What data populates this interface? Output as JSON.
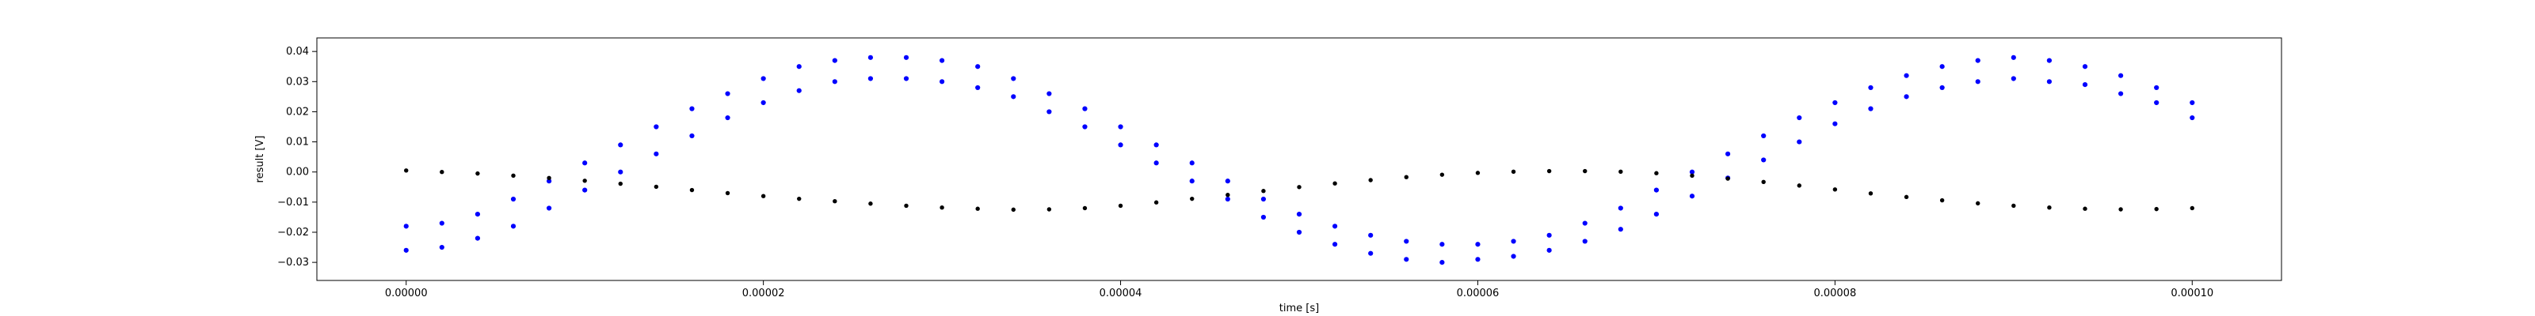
{
  "chart_data": {
    "type": "scatter",
    "title": "",
    "xlabel": "time [s]",
    "ylabel": "result [V]",
    "xlim": [
      -5e-06,
      0.000105
    ],
    "ylim": [
      -0.036,
      0.0445
    ],
    "grid": false,
    "legend": null,
    "x_ticks": [
      {
        "value": 0.0,
        "label": "0.00000"
      },
      {
        "value": 2e-05,
        "label": "0.00002"
      },
      {
        "value": 4e-05,
        "label": "0.00004"
      },
      {
        "value": 6e-05,
        "label": "0.00006"
      },
      {
        "value": 8e-05,
        "label": "0.00008"
      },
      {
        "value": 0.0001,
        "label": "0.00010"
      }
    ],
    "y_ticks": [
      {
        "value": -0.03,
        "label": "−0.03"
      },
      {
        "value": -0.02,
        "label": "−0.02"
      },
      {
        "value": -0.01,
        "label": "−0.01"
      },
      {
        "value": 0.0,
        "label": "0.00"
      },
      {
        "value": 0.01,
        "label": "0.01"
      },
      {
        "value": 0.02,
        "label": "0.02"
      },
      {
        "value": 0.03,
        "label": "0.03"
      },
      {
        "value": 0.04,
        "label": "0.04"
      }
    ],
    "series": [
      {
        "color": "#0000ff",
        "x": [
          0.0,
          2e-06,
          4e-06,
          6e-06,
          8e-06,
          1e-05,
          1.2e-05,
          1.4e-05,
          1.6e-05,
          1.8e-05,
          2e-05,
          2.2e-05,
          2.4e-05,
          2.6e-05,
          2.8e-05,
          3e-05,
          3.2e-05,
          3.4e-05,
          3.6e-05,
          3.8e-05,
          4e-05,
          4.2e-05,
          4.4e-05,
          4.6e-05,
          4.8e-05,
          5e-05,
          5.2e-05,
          5.4e-05,
          5.6e-05,
          5.8e-05,
          6e-05,
          6.2e-05,
          6.4e-05,
          6.6e-05,
          6.8e-05,
          7e-05,
          7.2e-05,
          7.4e-05,
          7.6e-05,
          7.8e-05,
          8e-05,
          8.2e-05,
          8.4e-05,
          8.6e-05,
          8.8e-05,
          9e-05,
          9.2e-05,
          9.4e-05,
          9.6e-05,
          9.8e-05,
          0.0001
        ],
        "y": [
          -0.018,
          -0.017,
          -0.014,
          -0.009,
          -0.003,
          0.003,
          0.009,
          0.015,
          0.021,
          0.026,
          0.031,
          0.035,
          0.037,
          0.038,
          0.038,
          0.037,
          0.035,
          0.031,
          0.026,
          0.021,
          0.015,
          0.009,
          0.003,
          -0.003,
          -0.009,
          -0.014,
          -0.018,
          -0.021,
          -0.023,
          -0.024,
          -0.024,
          -0.023,
          -0.021,
          -0.017,
          -0.012,
          -0.006,
          0.0,
          0.006,
          0.012,
          0.018,
          0.023,
          0.028,
          0.032,
          0.035,
          0.037,
          0.038,
          0.037,
          0.035,
          0.032,
          0.028,
          0.023
        ]
      },
      {
        "color": "#0000ff",
        "x": [
          0.0,
          2e-06,
          4e-06,
          6e-06,
          8e-06,
          1e-05,
          1.2e-05,
          1.4e-05,
          1.6e-05,
          1.8e-05,
          2e-05,
          2.2e-05,
          2.4e-05,
          2.6e-05,
          2.8e-05,
          3e-05,
          3.2e-05,
          3.4e-05,
          3.6e-05,
          3.8e-05,
          4e-05,
          4.2e-05,
          4.4e-05,
          4.6e-05,
          4.8e-05,
          5e-05,
          5.2e-05,
          5.4e-05,
          5.6e-05,
          5.8e-05,
          6e-05,
          6.2e-05,
          6.4e-05,
          6.6e-05,
          6.8e-05,
          7e-05,
          7.2e-05,
          7.4e-05,
          7.6e-05,
          7.8e-05,
          8e-05,
          8.2e-05,
          8.4e-05,
          8.6e-05,
          8.8e-05,
          9e-05,
          9.2e-05,
          9.4e-05,
          9.6e-05,
          9.8e-05,
          0.0001
        ],
        "y": [
          -0.026,
          -0.025,
          -0.022,
          -0.018,
          -0.012,
          -0.006,
          0.0,
          0.006,
          0.012,
          0.018,
          0.023,
          0.027,
          0.03,
          0.031,
          0.031,
          0.03,
          0.028,
          0.025,
          0.02,
          0.015,
          0.009,
          0.003,
          -0.003,
          -0.009,
          -0.015,
          -0.02,
          -0.024,
          -0.027,
          -0.029,
          -0.03,
          -0.029,
          -0.028,
          -0.026,
          -0.023,
          -0.019,
          -0.014,
          -0.008,
          -0.002,
          0.004,
          0.01,
          0.016,
          0.021,
          0.025,
          0.028,
          0.03,
          0.031,
          0.03,
          0.029,
          0.026,
          0.023,
          0.018
        ]
      },
      {
        "color": "#000000",
        "x": [
          0.0,
          2e-06,
          4e-06,
          6e-06,
          8e-06,
          1e-05,
          1.2e-05,
          1.4e-05,
          1.6e-05,
          1.8e-05,
          2e-05,
          2.2e-05,
          2.4e-05,
          2.6e-05,
          2.8e-05,
          3e-05,
          3.2e-05,
          3.4e-05,
          3.6e-05,
          3.8e-05,
          4e-05,
          4.2e-05,
          4.4e-05,
          4.6e-05,
          4.8e-05,
          5e-05,
          5.2e-05,
          5.4e-05,
          5.6e-05,
          5.8e-05,
          6e-05,
          6.2e-05,
          6.4e-05,
          6.6e-05,
          6.8e-05,
          7e-05,
          7.2e-05,
          7.4e-05,
          7.6e-05,
          7.8e-05,
          8e-05,
          8.2e-05,
          8.4e-05,
          8.6e-05,
          8.8e-05,
          9e-05,
          9.2e-05,
          9.4e-05,
          9.6e-05,
          9.8e-05,
          0.0001
        ],
        "y": [
          0.0005,
          0.0,
          -0.0005,
          -0.0012,
          -0.002,
          -0.0029,
          -0.0039,
          -0.0049,
          -0.006,
          -0.007,
          -0.008,
          -0.0089,
          -0.0097,
          -0.0105,
          -0.0112,
          -0.0118,
          -0.0122,
          -0.0125,
          -0.0124,
          -0.012,
          -0.0112,
          -0.0101,
          -0.0089,
          -0.0076,
          -0.0063,
          -0.005,
          -0.0038,
          -0.0027,
          -0.0017,
          -0.0009,
          -0.0003,
          0.0001,
          0.0003,
          0.0003,
          0.0001,
          -0.0004,
          -0.0012,
          -0.0022,
          -0.0033,
          -0.0045,
          -0.0058,
          -0.0071,
          -0.0083,
          -0.0094,
          -0.0104,
          -0.0112,
          -0.0118,
          -0.0122,
          -0.0124,
          -0.0123,
          -0.012
        ]
      }
    ]
  }
}
